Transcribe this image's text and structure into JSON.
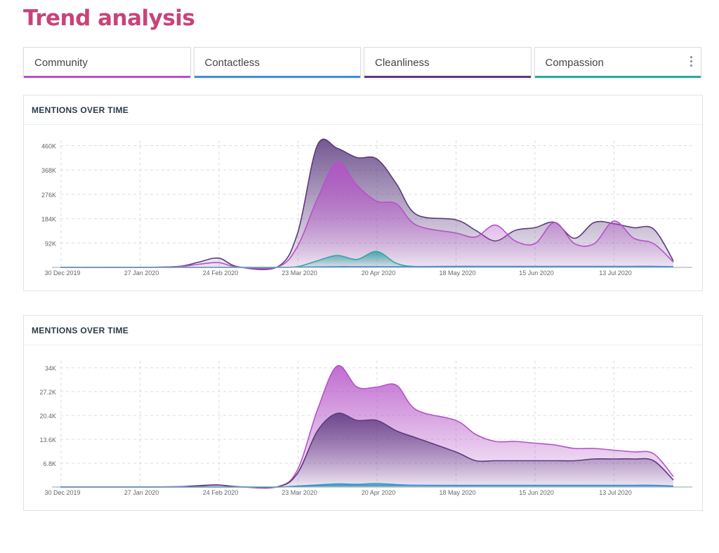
{
  "page": {
    "title": "Trend analysis"
  },
  "tabs": [
    {
      "label": "Community",
      "color": "#b552c8"
    },
    {
      "label": "Contactless",
      "color": "#3d8fe0"
    },
    {
      "label": "Cleanliness",
      "color": "#5b3a7e"
    },
    {
      "label": "Compassion",
      "color": "#2fa6a0"
    }
  ],
  "icons": {
    "tab_menu": "kebab-menu-icon"
  },
  "chart_data": [
    {
      "type": "area",
      "title": "MENTIONS OVER TIME",
      "x": [
        "2019-12-30",
        "2020-01-13",
        "2020-01-27",
        "2020-02-10",
        "2020-02-17",
        "2020-02-24",
        "2020-03-02",
        "2020-03-16",
        "2020-03-23",
        "2020-03-30",
        "2020-04-06",
        "2020-04-13",
        "2020-04-20",
        "2020-04-27",
        "2020-05-04",
        "2020-05-18",
        "2020-05-25",
        "2020-06-01",
        "2020-06-08",
        "2020-06-15",
        "2020-06-22",
        "2020-06-29",
        "2020-07-06",
        "2020-07-13",
        "2020-07-20",
        "2020-07-27",
        "2020-08-03"
      ],
      "x_ticks": [
        "30 Dec 2019",
        "27 Jan 2020",
        "24 Feb 2020",
        "23 Mar 2020",
        "20 Apr 2020",
        "18 May 2020",
        "15 Jun 2020",
        "13 Jul 2020"
      ],
      "y_ticks": [
        "92K",
        "184K",
        "276K",
        "368K",
        "460K"
      ],
      "ylim": [
        0,
        480000
      ],
      "grid": true,
      "series": [
        {
          "name": "Cleanliness",
          "color": "#5b3a7e",
          "values": [
            0,
            0,
            0,
            4000,
            20000,
            35000,
            2000,
            3000,
            130000,
            462000,
            450000,
            415000,
            410000,
            315000,
            200000,
            180000,
            140000,
            100000,
            140000,
            150000,
            170000,
            110000,
            170000,
            165000,
            150000,
            145000,
            25000
          ]
        },
        {
          "name": "Community",
          "color": "#b552c8",
          "values": [
            0,
            0,
            0,
            3000,
            12000,
            18000,
            1000,
            2000,
            80000,
            260000,
            398000,
            310000,
            250000,
            240000,
            160000,
            130000,
            115000,
            160000,
            100000,
            90000,
            170000,
            90000,
            90000,
            175000,
            110000,
            90000,
            20000
          ]
        },
        {
          "name": "Compassion",
          "color": "#2fa6a0",
          "values": [
            0,
            0,
            0,
            0,
            0,
            0,
            0,
            0,
            3000,
            25000,
            45000,
            30000,
            60000,
            15000,
            3000,
            2000,
            2000,
            2000,
            2000,
            2000,
            2000,
            2000,
            2000,
            2000,
            2000,
            2000,
            1000
          ]
        },
        {
          "name": "Contactless",
          "color": "#3d8fe0",
          "values": [
            0,
            0,
            0,
            0,
            0,
            0,
            0,
            0,
            1000,
            2000,
            3000,
            3000,
            3000,
            3000,
            3000,
            4000,
            4000,
            4000,
            4000,
            4000,
            4000,
            4000,
            4000,
            4000,
            4000,
            4000,
            3000
          ]
        }
      ]
    },
    {
      "type": "area",
      "title": "MENTIONS OVER TIME",
      "x": [
        "2019-12-30",
        "2020-01-13",
        "2020-01-27",
        "2020-02-10",
        "2020-02-17",
        "2020-02-24",
        "2020-03-02",
        "2020-03-16",
        "2020-03-23",
        "2020-03-30",
        "2020-04-06",
        "2020-04-13",
        "2020-04-20",
        "2020-04-27",
        "2020-05-04",
        "2020-05-18",
        "2020-05-25",
        "2020-06-01",
        "2020-06-08",
        "2020-06-15",
        "2020-06-22",
        "2020-06-29",
        "2020-07-06",
        "2020-07-13",
        "2020-07-20",
        "2020-07-27",
        "2020-08-03"
      ],
      "x_ticks": [
        "30 Dec 2019",
        "27 Jan 2020",
        "24 Feb 2020",
        "23 Mar 2020",
        "20 Apr 2020",
        "18 May 2020",
        "15 Jun 2020",
        "13 Jul 2020"
      ],
      "y_ticks": [
        "6.8K",
        "13.6K",
        "20.4K",
        "27.2K",
        "34K"
      ],
      "ylim": [
        0,
        36000
      ],
      "grid": true,
      "series": [
        {
          "name": "Community",
          "color": "#b552c8",
          "values": [
            0,
            0,
            0,
            100,
            300,
            500,
            100,
            100,
            5000,
            22000,
            34500,
            28500,
            28500,
            29000,
            22000,
            19000,
            15000,
            13000,
            13000,
            12500,
            12000,
            11000,
            11000,
            10500,
            10000,
            9500,
            3000
          ]
        },
        {
          "name": "Cleanliness",
          "color": "#5b3a7e",
          "values": [
            0,
            0,
            0,
            100,
            400,
            600,
            100,
            100,
            4000,
            16000,
            21000,
            19000,
            19000,
            16000,
            14000,
            10000,
            7500,
            7500,
            7500,
            7500,
            7500,
            7500,
            8000,
            8000,
            8000,
            7500,
            2000
          ]
        },
        {
          "name": "Compassion",
          "color": "#2fa6a0",
          "values": [
            0,
            0,
            0,
            0,
            0,
            0,
            0,
            0,
            300,
            600,
            900,
            800,
            1000,
            700,
            500,
            400,
            400,
            400,
            400,
            400,
            400,
            400,
            400,
            400,
            400,
            400,
            200
          ]
        },
        {
          "name": "Contactless",
          "color": "#3d8fe0",
          "values": [
            0,
            0,
            0,
            0,
            0,
            0,
            0,
            0,
            200,
            400,
            500,
            500,
            500,
            500,
            500,
            500,
            500,
            500,
            500,
            500,
            500,
            500,
            500,
            500,
            500,
            500,
            300
          ]
        }
      ]
    }
  ]
}
